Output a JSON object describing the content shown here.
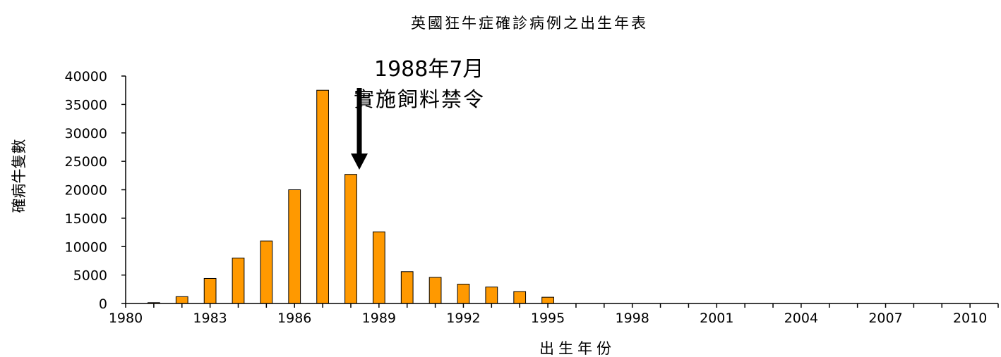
{
  "chart_data": {
    "type": "bar",
    "title": "英國狂牛症確診病例之出生年表",
    "xlabel": "出生年份",
    "ylabel": "確病牛隻數",
    "xlim": [
      1980,
      2011
    ],
    "ylim": [
      0,
      40000
    ],
    "ytick_step": 5000,
    "xticks": [
      1980,
      1983,
      1986,
      1989,
      1992,
      1995,
      1998,
      2001,
      2004,
      2007,
      2010
    ],
    "x": [
      1981,
      1982,
      1983,
      1984,
      1985,
      1986,
      1987,
      1988,
      1989,
      1990,
      1991,
      1992,
      1993,
      1994,
      1995
    ],
    "values": [
      150,
      1200,
      4400,
      8000,
      11000,
      20000,
      37500,
      22700,
      12600,
      5600,
      4600,
      3400,
      2900,
      2100,
      1100
    ],
    "bar_color": "#ff9900",
    "grid": false,
    "annotation": {
      "line1": "1988年7月",
      "line2": "實施飼料禁令",
      "x": 1988
    }
  }
}
